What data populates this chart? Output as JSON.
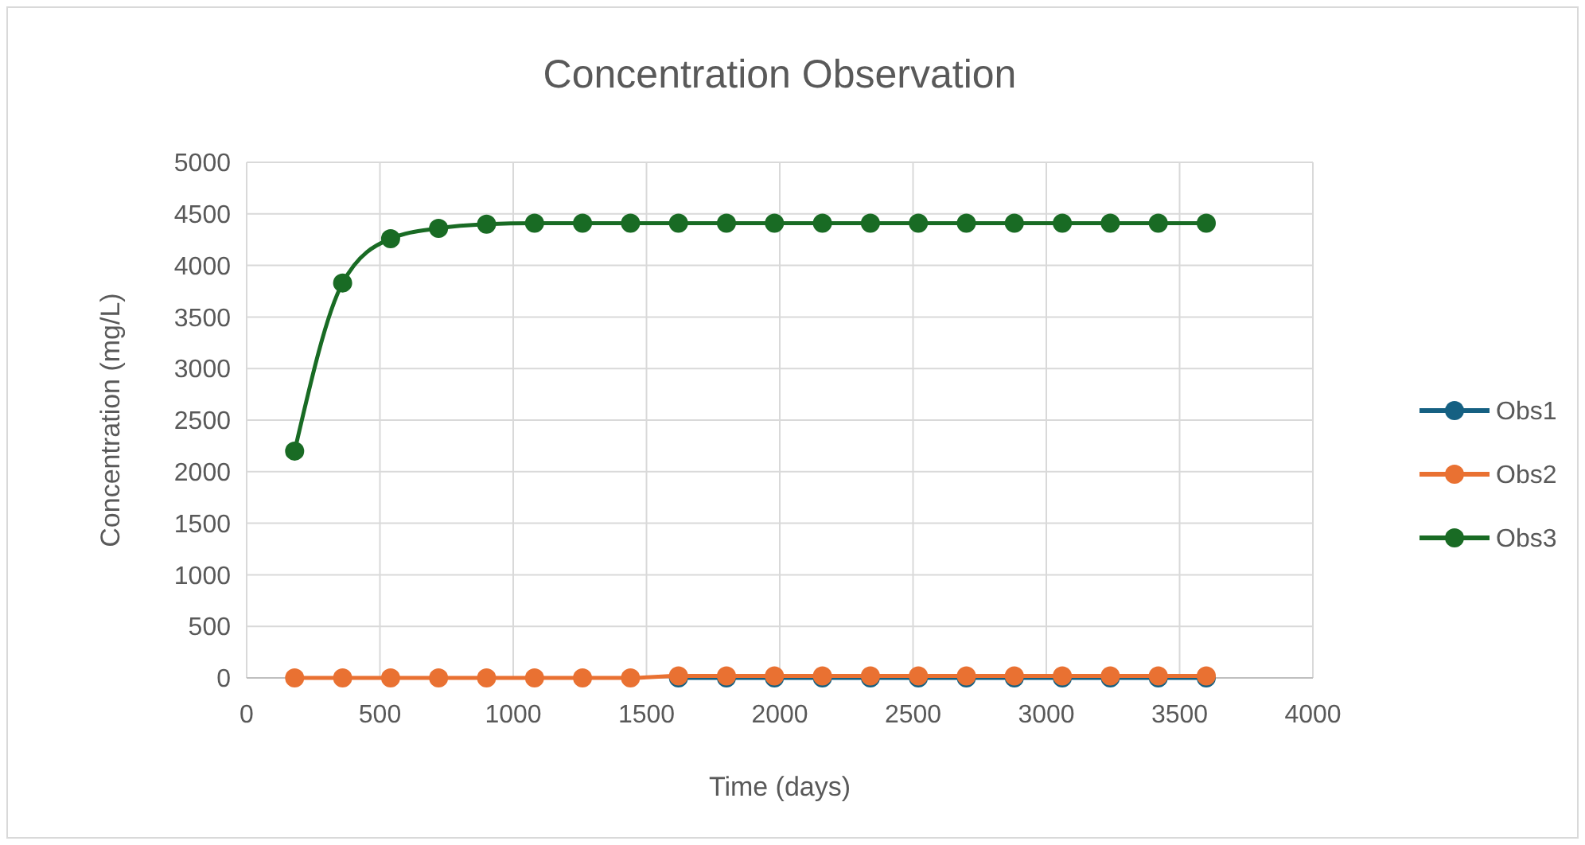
{
  "chart_data": {
    "type": "line",
    "title": "Concentration Observation",
    "xlabel": "Time (days)",
    "ylabel": "Concentration (mg/L)",
    "x": [
      180,
      360,
      540,
      720,
      900,
      1080,
      1260,
      1440,
      1620,
      1800,
      1980,
      2160,
      2340,
      2520,
      2700,
      2880,
      3060,
      3240,
      3420,
      3600
    ],
    "series": [
      {
        "name": "Obs1",
        "color": "#156082",
        "values": [
          null,
          null,
          null,
          null,
          null,
          null,
          null,
          null,
          0,
          0,
          0,
          0,
          0,
          0,
          0,
          0,
          0,
          0,
          0,
          0
        ]
      },
      {
        "name": "Obs2",
        "color": "#e97132",
        "values": [
          0,
          0,
          0,
          0,
          0,
          0,
          0,
          0,
          20,
          20,
          20,
          20,
          20,
          20,
          20,
          20,
          20,
          20,
          20,
          20
        ]
      },
      {
        "name": "Obs3",
        "color": "#196b24",
        "values": [
          2200,
          3830,
          4260,
          4360,
          4400,
          4410,
          4410,
          4410,
          4410,
          4410,
          4410,
          4410,
          4410,
          4410,
          4410,
          4410,
          4410,
          4410,
          4410,
          4410
        ]
      }
    ],
    "xlim": [
      0,
      4000
    ],
    "xticks": [
      0,
      500,
      1000,
      1500,
      2000,
      2500,
      3000,
      3500,
      4000
    ],
    "ylim": [
      0,
      5000
    ],
    "yticks": [
      0,
      500,
      1000,
      1500,
      2000,
      2500,
      3000,
      3500,
      4000,
      4500,
      5000
    ],
    "grid": true,
    "legend": "right",
    "marker": "circle",
    "line_style": "solid"
  }
}
